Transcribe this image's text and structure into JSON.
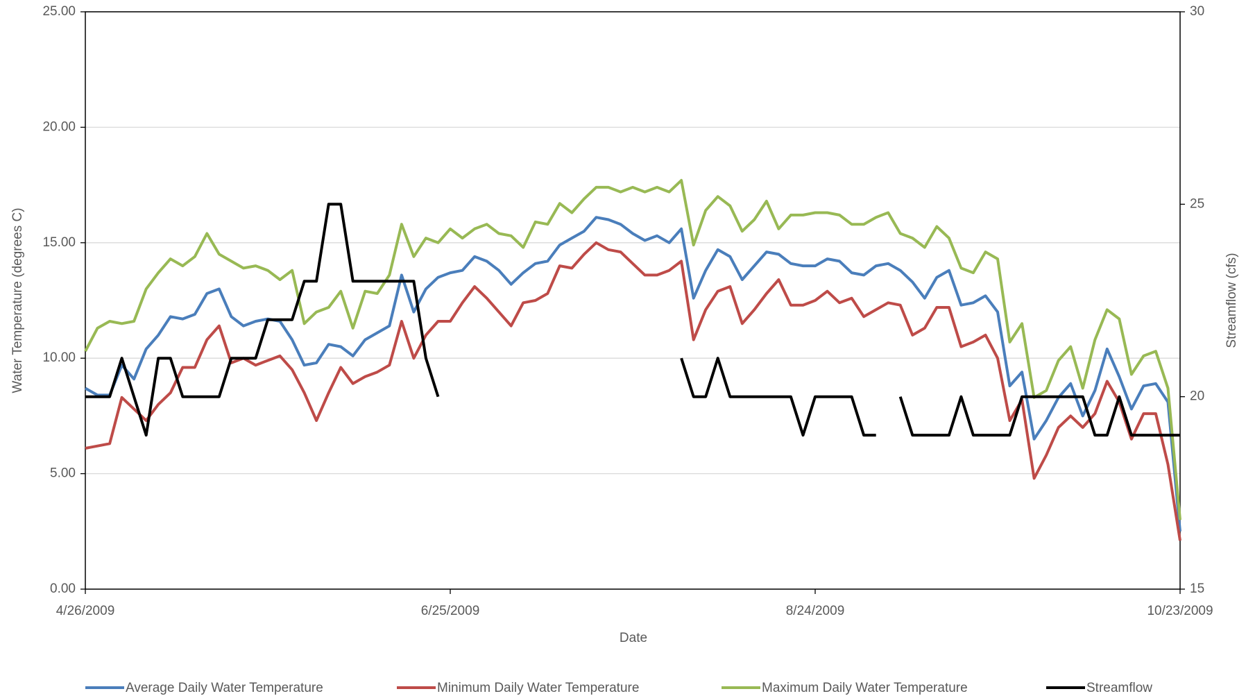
{
  "chart_data": {
    "type": "line",
    "x_label": "Date",
    "y_label": "Water Temperature (degrees C)",
    "y2_label": "Streamflow (cfs)",
    "x": [
      "4/26/2009",
      "4/28/2009",
      "4/30/2009",
      "5/2/2009",
      "5/4/2009",
      "5/6/2009",
      "5/8/2009",
      "5/10/2009",
      "5/12/2009",
      "5/14/2009",
      "5/16/2009",
      "5/18/2009",
      "5/20/2009",
      "5/22/2009",
      "5/24/2009",
      "5/26/2009",
      "5/28/2009",
      "5/30/2009",
      "6/1/2009",
      "6/3/2009",
      "6/5/2009",
      "6/7/2009",
      "6/9/2009",
      "6/11/2009",
      "6/13/2009",
      "6/15/2009",
      "6/17/2009",
      "6/19/2009",
      "6/21/2009",
      "6/23/2009",
      "6/25/2009",
      "6/27/2009",
      "6/29/2009",
      "7/1/2009",
      "7/3/2009",
      "7/5/2009",
      "7/7/2009",
      "7/9/2009",
      "7/11/2009",
      "7/13/2009",
      "7/15/2009",
      "7/17/2009",
      "7/19/2009",
      "7/21/2009",
      "7/23/2009",
      "7/25/2009",
      "7/27/2009",
      "7/29/2009",
      "7/31/2009",
      "8/2/2009",
      "8/4/2009",
      "8/6/2009",
      "8/8/2009",
      "8/10/2009",
      "8/12/2009",
      "8/14/2009",
      "8/16/2009",
      "8/18/2009",
      "8/20/2009",
      "8/22/2009",
      "8/24/2009",
      "8/26/2009",
      "8/28/2009",
      "8/30/2009",
      "9/1/2009",
      "9/3/2009",
      "9/5/2009",
      "9/7/2009",
      "9/9/2009",
      "9/11/2009",
      "9/13/2009",
      "9/15/2009",
      "9/17/2009",
      "9/19/2009",
      "9/21/2009",
      "9/23/2009",
      "9/25/2009",
      "9/27/2009",
      "9/29/2009",
      "10/1/2009",
      "10/3/2009",
      "10/5/2009",
      "10/7/2009",
      "10/9/2009",
      "10/11/2009",
      "10/13/2009",
      "10/15/2009",
      "10/17/2009",
      "10/19/2009",
      "10/21/2009",
      "10/23/2009"
    ],
    "xlim": [
      "4/26/2009",
      "10/23/2009"
    ],
    "xticks": [
      "4/26/2009",
      "6/25/2009",
      "8/24/2009",
      "10/23/2009"
    ],
    "ylim": [
      0,
      25
    ],
    "yticks": [
      {
        "value": 0,
        "label": "0.00"
      },
      {
        "value": 5,
        "label": "5.00"
      },
      {
        "value": 10,
        "label": "10.00"
      },
      {
        "value": 15,
        "label": "15.00"
      },
      {
        "value": 20,
        "label": "20.00"
      },
      {
        "value": 25,
        "label": "25.00"
      }
    ],
    "y2lim": [
      15,
      30
    ],
    "y2ticks": [
      15,
      20,
      25,
      30
    ],
    "grid": true,
    "legend": "bottom",
    "series": [
      {
        "name": "Average Daily Water Temperature",
        "color": "#4a7ebb",
        "values": [
          8.7,
          8.4,
          8.4,
          9.7,
          9.1,
          10.4,
          11.0,
          11.8,
          11.7,
          11.9,
          12.8,
          13.0,
          11.8,
          11.4,
          11.6,
          11.7,
          11.6,
          10.8,
          9.7,
          9.8,
          10.6,
          10.5,
          10.1,
          10.8,
          11.1,
          11.4,
          13.6,
          12.0,
          13.0,
          13.5,
          13.7,
          13.8,
          14.4,
          14.2,
          13.8,
          13.2,
          13.7,
          14.1,
          14.2,
          14.9,
          15.2,
          15.5,
          16.1,
          16.0,
          15.8,
          15.4,
          15.1,
          15.3,
          15.0,
          15.6,
          12.6,
          13.8,
          14.7,
          14.4,
          13.4,
          14.0,
          14.6,
          14.5,
          14.1,
          14.0,
          14.0,
          14.3,
          14.2,
          13.7,
          13.6,
          14.0,
          14.1,
          13.8,
          13.3,
          12.6,
          13.5,
          13.8,
          12.3,
          12.4,
          12.7,
          12.0,
          8.8,
          9.4,
          6.5,
          7.3,
          8.3,
          8.9,
          7.5,
          8.6,
          10.4,
          9.2,
          7.8,
          8.8,
          8.9,
          8.1,
          2.5
        ]
      },
      {
        "name": "Minimum Daily Water Temperature",
        "color": "#be4b48",
        "values": [
          6.1,
          6.2,
          6.3,
          8.3,
          7.8,
          7.3,
          8.0,
          8.5,
          9.6,
          9.6,
          10.8,
          11.4,
          9.8,
          10.0,
          9.7,
          9.9,
          10.1,
          9.5,
          8.5,
          7.3,
          8.5,
          9.6,
          8.9,
          9.2,
          9.4,
          9.7,
          11.6,
          10.0,
          11.0,
          11.6,
          11.6,
          12.4,
          13.1,
          12.6,
          12.0,
          11.4,
          12.4,
          12.5,
          12.8,
          14.0,
          13.9,
          14.5,
          15.0,
          14.7,
          14.6,
          14.1,
          13.6,
          13.6,
          13.8,
          14.2,
          10.8,
          12.1,
          12.9,
          13.1,
          11.5,
          12.1,
          12.8,
          13.4,
          12.3,
          12.3,
          12.5,
          12.9,
          12.4,
          12.6,
          11.8,
          12.1,
          12.4,
          12.3,
          11.0,
          11.3,
          12.2,
          12.2,
          10.5,
          10.7,
          11.0,
          10.0,
          7.3,
          8.2,
          4.8,
          5.8,
          7.0,
          7.5,
          7.0,
          7.6,
          9.0,
          8.1,
          6.5,
          7.6,
          7.6,
          5.4,
          2.1
        ]
      },
      {
        "name": "Maximum Daily Water Temperature",
        "color": "#98b954",
        "values": [
          10.3,
          11.3,
          11.6,
          11.5,
          11.6,
          13.0,
          13.7,
          14.3,
          14.0,
          14.4,
          15.4,
          14.5,
          14.2,
          13.9,
          14.0,
          13.8,
          13.4,
          13.8,
          11.5,
          12.0,
          12.2,
          12.9,
          11.3,
          12.9,
          12.8,
          13.6,
          15.8,
          14.4,
          15.2,
          15.0,
          15.6,
          15.2,
          15.6,
          15.8,
          15.4,
          15.3,
          14.8,
          15.9,
          15.8,
          16.7,
          16.3,
          16.9,
          17.4,
          17.4,
          17.2,
          17.4,
          17.2,
          17.4,
          17.2,
          17.7,
          14.9,
          16.4,
          17.0,
          16.6,
          15.5,
          16.0,
          16.8,
          15.6,
          16.2,
          16.2,
          16.3,
          16.3,
          16.2,
          15.8,
          15.8,
          16.1,
          16.3,
          15.4,
          15.2,
          14.8,
          15.7,
          15.2,
          13.9,
          13.7,
          14.6,
          14.3,
          10.7,
          11.5,
          8.3,
          8.6,
          9.9,
          10.5,
          8.7,
          10.8,
          12.1,
          11.7,
          9.3,
          10.1,
          10.3,
          8.7,
          3.0
        ]
      },
      {
        "name": "Streamflow",
        "color": "#000000",
        "axis": "y2",
        "values": [
          20,
          20,
          20,
          21,
          20,
          19,
          21,
          21,
          20,
          20,
          20,
          20,
          21,
          21,
          21,
          22,
          22,
          22,
          23,
          23,
          25,
          25,
          23,
          23,
          23,
          23,
          23,
          23,
          21,
          20,
          null,
          null,
          null,
          null,
          null,
          null,
          null,
          null,
          null,
          null,
          null,
          null,
          null,
          null,
          null,
          null,
          null,
          null,
          null,
          21,
          20,
          20,
          21,
          20,
          20,
          20,
          20,
          20,
          20,
          19,
          20,
          20,
          20,
          20,
          19,
          19,
          null,
          20,
          19,
          19,
          19,
          19,
          20,
          19,
          19,
          19,
          19,
          20,
          20,
          20,
          20,
          20,
          20,
          19,
          19,
          20,
          19,
          19,
          19,
          19,
          19
        ]
      }
    ]
  }
}
